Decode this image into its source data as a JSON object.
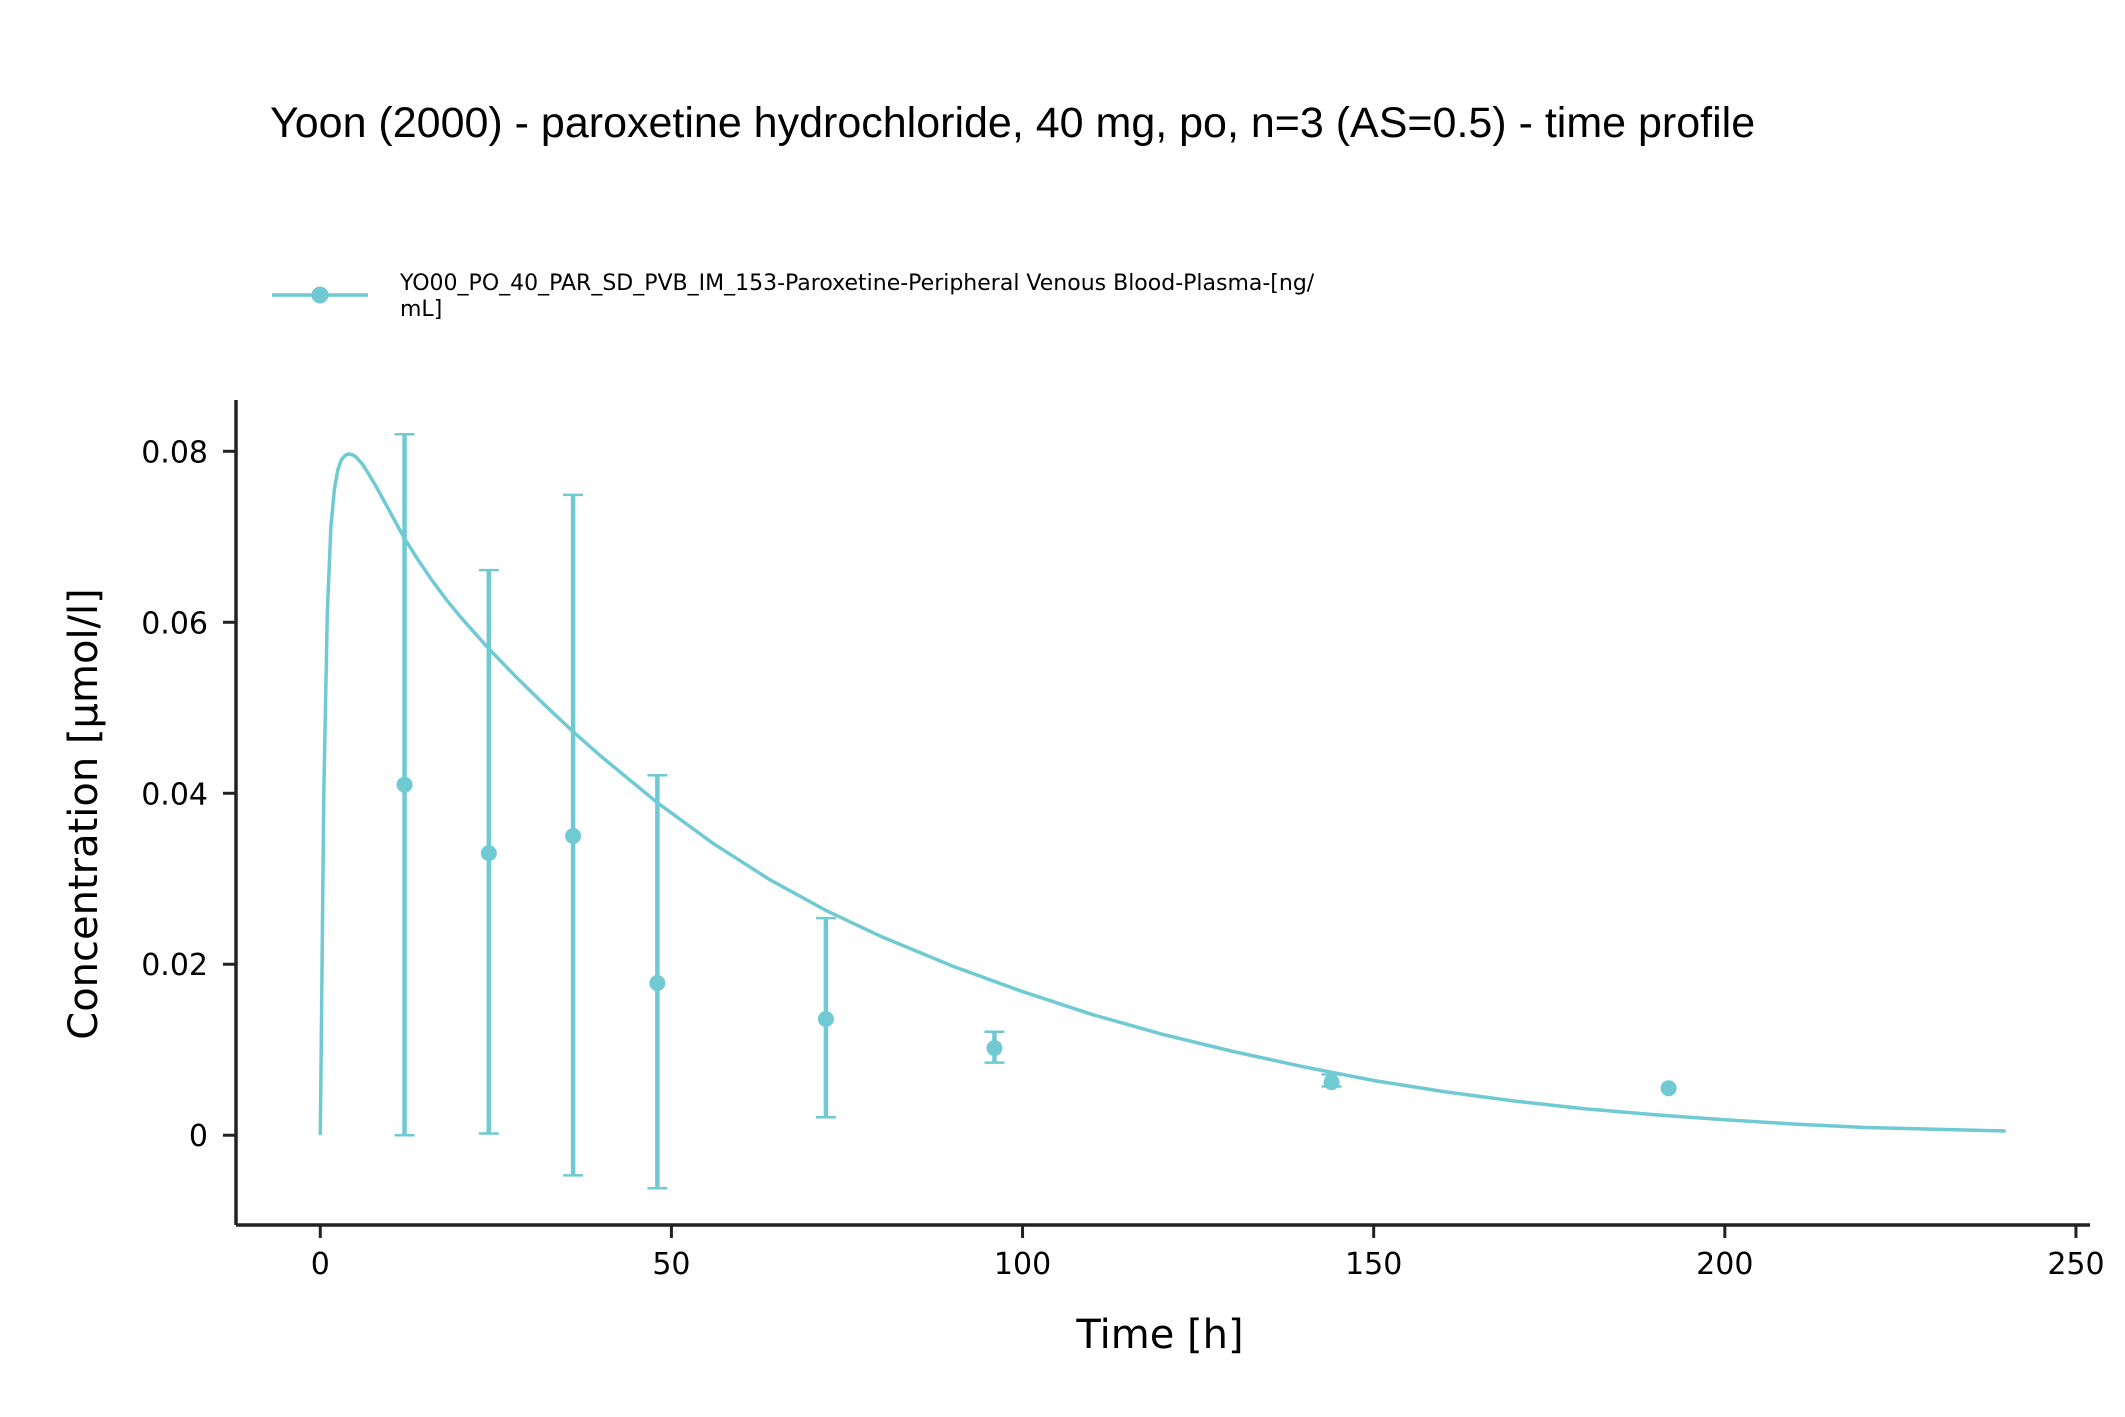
{
  "chart_data": {
    "type": "line",
    "title": "Yoon (2000) - paroxetine hydrochloride, 40 mg, po, n=3 (AS=0.5) - time profile",
    "xlabel": "Time [h]",
    "ylabel": "Concentration [µmol/l]",
    "xlim": [
      -12,
      252
    ],
    "ylim": [
      -0.0105,
      0.086
    ],
    "xticks": [
      0,
      50,
      100,
      150,
      200,
      250
    ],
    "xtick_labels": [
      "0",
      "50",
      "100",
      "150",
      "200",
      "250"
    ],
    "yticks": [
      0,
      0.02,
      0.04,
      0.06,
      0.08
    ],
    "ytick_labels": [
      "0",
      "0.02",
      "0.04",
      "0.06",
      "0.08"
    ],
    "grid": false,
    "legend_position": "top-left",
    "color": "#6fcad3",
    "legend": {
      "line1": "YO00_PO_40_PAR_SD_PVB_IM_153-Paroxetine-Peripheral Venous Blood-Plasma-[ng/",
      "line2": "mL]"
    },
    "series": [
      {
        "type": "simulation-line",
        "x": [
          0,
          0.5,
          1,
          1.5,
          2,
          2.5,
          3,
          3.5,
          4,
          4.5,
          5,
          6,
          7,
          8,
          10,
          12,
          14,
          16,
          18,
          20,
          24,
          28,
          32,
          36,
          40,
          48,
          56,
          64,
          72,
          80,
          90,
          100,
          110,
          120,
          130,
          140,
          150,
          160,
          170,
          180,
          190,
          200,
          210,
          220,
          230,
          240
        ],
        "y": [
          0,
          0.04,
          0.061,
          0.071,
          0.0755,
          0.0778,
          0.079,
          0.0795,
          0.0797,
          0.0796,
          0.0794,
          0.0785,
          0.0772,
          0.0758,
          0.0728,
          0.0698,
          0.0672,
          0.0648,
          0.0626,
          0.0606,
          0.0569,
          0.0535,
          0.0503,
          0.0472,
          0.0443,
          0.0389,
          0.0341,
          0.0299,
          0.0263,
          0.0232,
          0.0198,
          0.0168,
          0.0141,
          0.0118,
          0.0098,
          0.008,
          0.0064,
          0.0051,
          0.004,
          0.0031,
          0.0024,
          0.0018,
          0.0013,
          0.0009,
          0.0007,
          0.0005
        ]
      },
      {
        "type": "observed-points",
        "x": [
          12,
          24,
          36,
          48,
          72,
          96,
          144,
          192
        ],
        "y": [
          0.041,
          0.033,
          0.035,
          0.0178,
          0.0136,
          0.0102,
          0.0062,
          0.0055
        ],
        "error_low": [
          0,
          0.0002,
          -0.0047,
          -0.0062,
          0.0021,
          0.0085,
          0.0057,
          null
        ],
        "error_high": [
          0.082,
          0.0661,
          0.0749,
          0.0421,
          0.0254,
          0.0121,
          0.0071,
          null
        ]
      }
    ]
  }
}
